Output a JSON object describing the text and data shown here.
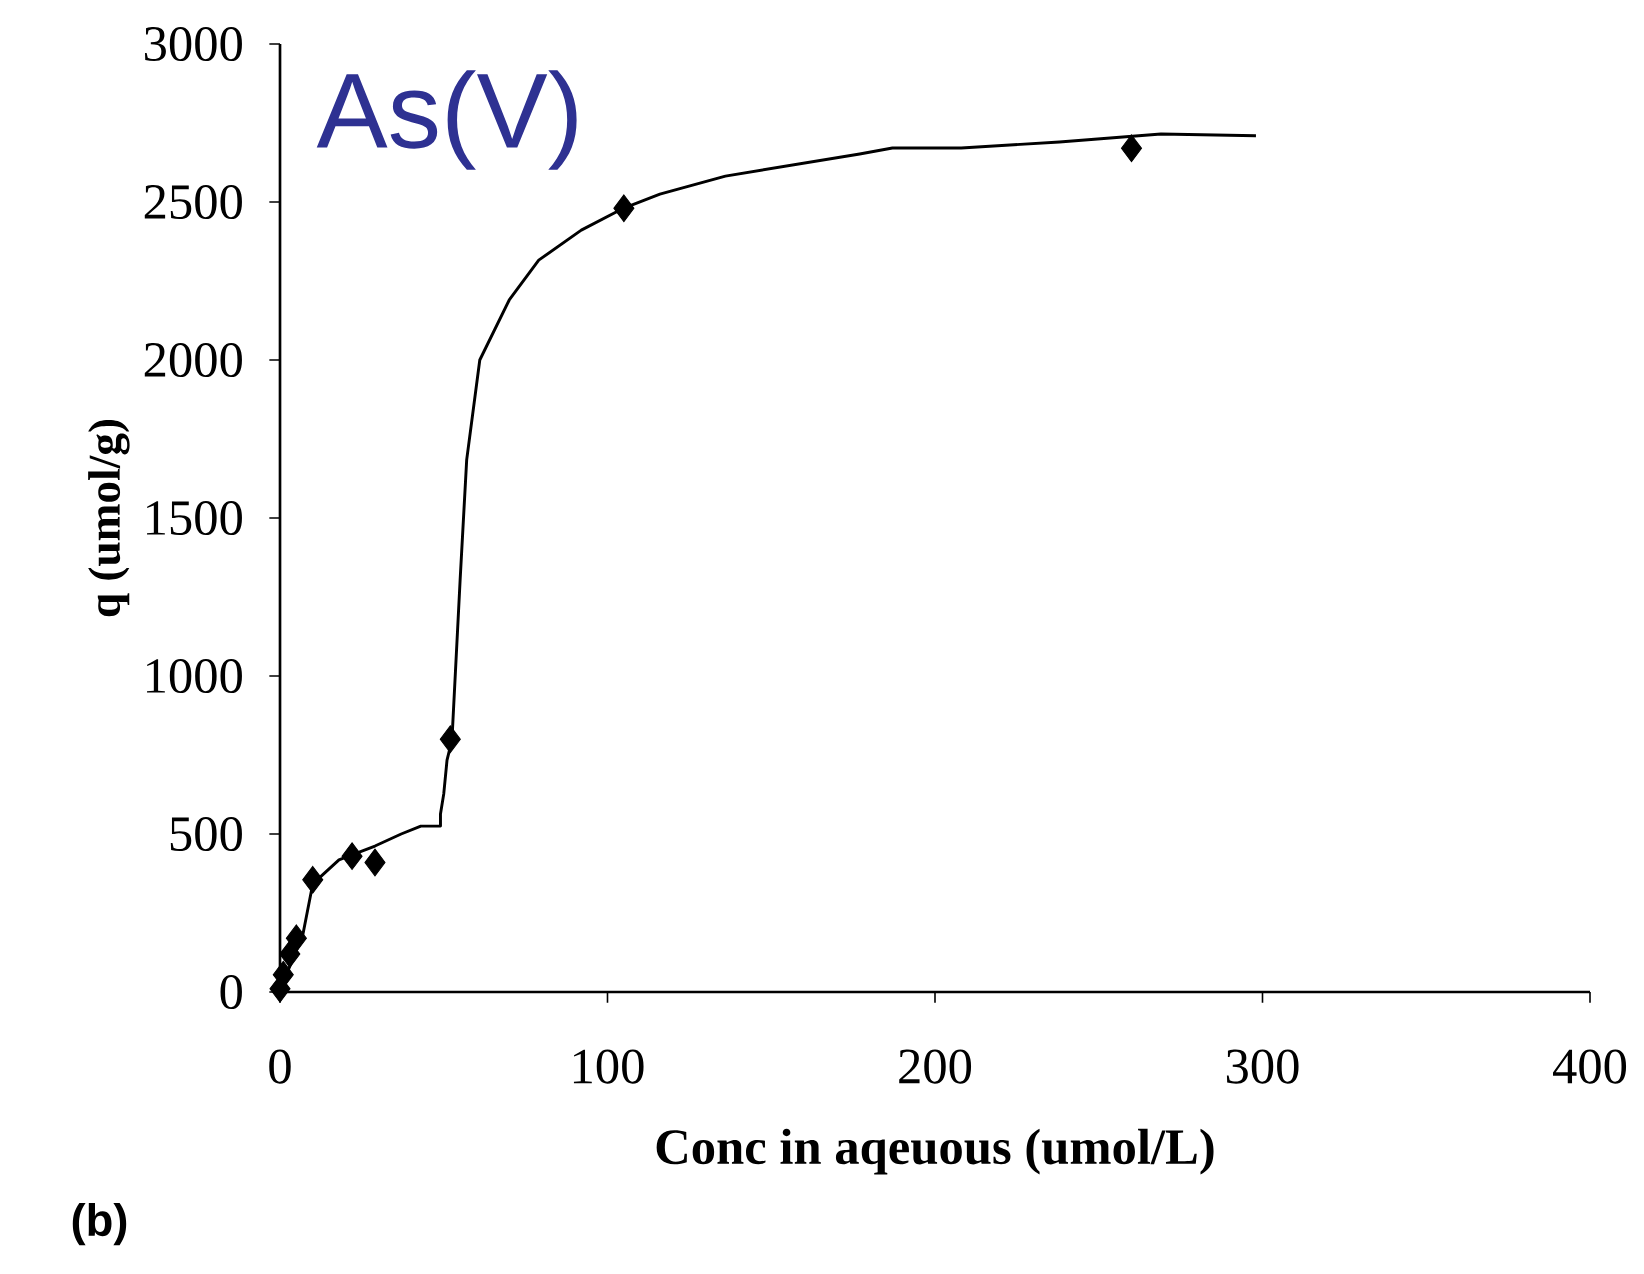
{
  "chart_data": {
    "type": "scatter",
    "xlabel": "Conc in aqeuous (umol/L)",
    "ylabel": "q (umol/g)",
    "annotations": [
      "As(V)",
      "(b)"
    ],
    "xlim": [
      0,
      400
    ],
    "ylim": [
      0,
      3000
    ],
    "xticks": [
      0,
      100,
      200,
      300,
      400
    ],
    "yticks": [
      0,
      500,
      1000,
      1500,
      2000,
      2500,
      3000
    ],
    "grid": false,
    "series": [
      {
        "marker": "diamond",
        "color": "#000000",
        "x": [
          0,
          1,
          3,
          5,
          10,
          22,
          29,
          52,
          105,
          260
        ],
        "values": [
          10,
          55,
          120,
          170,
          355,
          430,
          410,
          800,
          2480,
          2670
        ]
      },
      {
        "type": "line",
        "marker": "none",
        "line_style": "solid",
        "color": "#000000",
        "x": [
          0,
          7,
          10,
          18,
          29,
          37,
          43,
          49,
          49,
          50,
          51,
          52.5,
          55,
          57,
          61,
          70,
          79,
          92,
          105,
          116,
          136,
          177,
          187,
          208,
          238,
          269,
          298
        ],
        "values": [
          6,
          183,
          342,
          418,
          462,
          500,
          525,
          525,
          563,
          627,
          734,
          797,
          1304,
          1684,
          2000,
          2190,
          2316,
          2411,
          2481,
          2525,
          2582,
          2652,
          2671,
          2671,
          2690,
          2715,
          2710
        ]
      }
    ]
  }
}
